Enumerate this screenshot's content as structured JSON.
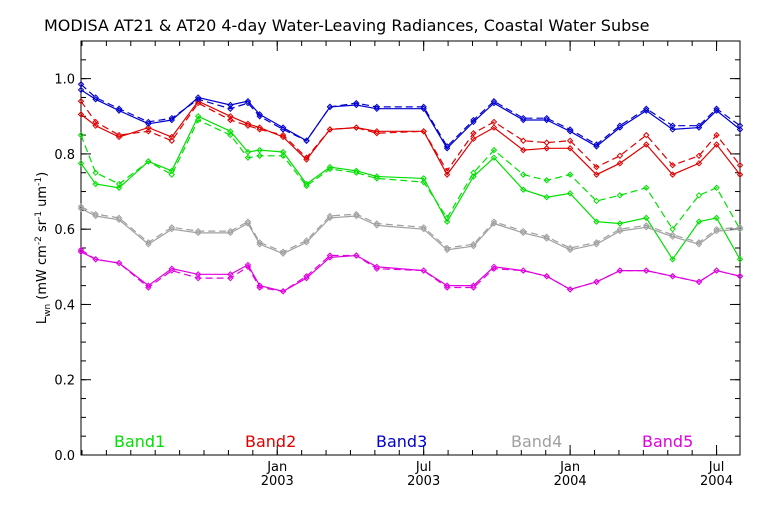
{
  "chart_data": {
    "type": "line",
    "title": "MODISA AT21 & AT20 4-day Water-Leaving Radiances, Coastal Water Subse",
    "ylabel_main": "L",
    "ylabel_sub": "wn",
    "ylabel_rest": " (mW cm",
    "ylabel_exp1": "-2",
    "ylabel_mid": " sr",
    "ylabel_exp2": "-1",
    "ylabel_mid2": " um",
    "ylabel_exp3": "-1",
    "ylabel_end": ")",
    "ylim": [
      0.0,
      1.1
    ],
    "xlim": [
      2002.33,
      2004.58
    ],
    "yticks": [
      "0.0",
      "0.2",
      "0.4",
      "0.6",
      "0.8",
      "1.0"
    ],
    "xticks": [
      {
        "x": 2003.0,
        "month": "Jan",
        "year": "2003"
      },
      {
        "x": 2003.5,
        "month": "Jul",
        "year": "2003"
      },
      {
        "x": 2004.0,
        "month": "Jan",
        "year": "2004"
      },
      {
        "x": 2004.5,
        "month": "Jul",
        "year": "2004"
      }
    ],
    "legend": [
      "Band1",
      "Band2",
      "Band3",
      "Band4",
      "Band5"
    ],
    "x": [
      2002.33,
      2002.38,
      2002.46,
      2002.56,
      2002.64,
      2002.73,
      2002.84,
      2002.9,
      2002.94,
      2003.02,
      2003.1,
      2003.18,
      2003.27,
      2003.34,
      2003.5,
      2003.58,
      2003.67,
      2003.74,
      2003.84,
      2003.92,
      2004.0,
      2004.09,
      2004.17,
      2004.26,
      2004.35,
      2004.44,
      2004.5,
      2004.58
    ],
    "series": [
      {
        "name": "Band1",
        "color": "#00e000",
        "style": "solid",
        "values": [
          0.775,
          0.72,
          0.71,
          0.78,
          0.755,
          0.9,
          0.86,
          0.805,
          0.81,
          0.805,
          0.72,
          0.765,
          0.755,
          0.74,
          0.735,
          0.62,
          0.74,
          0.79,
          0.705,
          0.685,
          0.695,
          0.62,
          0.615,
          0.63,
          0.52,
          0.62,
          0.63,
          0.52
        ]
      },
      {
        "name": "Band1",
        "color": "#00e000",
        "style": "dashed",
        "values": [
          0.85,
          0.75,
          0.72,
          0.78,
          0.745,
          0.89,
          0.85,
          0.79,
          0.795,
          0.795,
          0.715,
          0.76,
          0.75,
          0.735,
          0.725,
          0.63,
          0.75,
          0.81,
          0.745,
          0.73,
          0.745,
          0.675,
          0.69,
          0.71,
          0.6,
          0.69,
          0.71,
          0.6
        ]
      },
      {
        "name": "Band2",
        "color": "#e00000",
        "style": "solid",
        "values": [
          0.905,
          0.875,
          0.845,
          0.87,
          0.845,
          0.94,
          0.9,
          0.88,
          0.87,
          0.845,
          0.785,
          0.865,
          0.87,
          0.86,
          0.86,
          0.745,
          0.84,
          0.87,
          0.81,
          0.815,
          0.815,
          0.745,
          0.775,
          0.825,
          0.745,
          0.775,
          0.825,
          0.745
        ]
      },
      {
        "name": "Band2",
        "color": "#e00000",
        "style": "dashed",
        "values": [
          0.94,
          0.885,
          0.85,
          0.86,
          0.835,
          0.935,
          0.89,
          0.875,
          0.865,
          0.85,
          0.79,
          0.865,
          0.87,
          0.855,
          0.86,
          0.755,
          0.855,
          0.885,
          0.835,
          0.83,
          0.835,
          0.765,
          0.795,
          0.85,
          0.77,
          0.795,
          0.85,
          0.77
        ]
      },
      {
        "name": "Band3",
        "color": "#0000d0",
        "style": "solid",
        "values": [
          0.97,
          0.945,
          0.915,
          0.88,
          0.89,
          0.95,
          0.93,
          0.94,
          0.905,
          0.87,
          0.835,
          0.925,
          0.93,
          0.92,
          0.92,
          0.815,
          0.885,
          0.935,
          0.89,
          0.89,
          0.86,
          0.82,
          0.87,
          0.915,
          0.865,
          0.87,
          0.915,
          0.865
        ]
      },
      {
        "name": "Band3",
        "color": "#0000d0",
        "style": "dashed",
        "values": [
          0.985,
          0.95,
          0.92,
          0.885,
          0.895,
          0.945,
          0.92,
          0.935,
          0.9,
          0.865,
          0.835,
          0.925,
          0.935,
          0.925,
          0.925,
          0.82,
          0.89,
          0.94,
          0.895,
          0.895,
          0.865,
          0.825,
          0.875,
          0.92,
          0.875,
          0.875,
          0.92,
          0.875
        ]
      },
      {
        "name": "Band4",
        "color": "#a0a0a0",
        "style": "solid",
        "values": [
          0.655,
          0.635,
          0.625,
          0.56,
          0.6,
          0.59,
          0.59,
          0.615,
          0.56,
          0.535,
          0.565,
          0.63,
          0.635,
          0.61,
          0.6,
          0.545,
          0.555,
          0.615,
          0.59,
          0.575,
          0.545,
          0.56,
          0.595,
          0.605,
          0.58,
          0.56,
          0.595,
          0.6
        ]
      },
      {
        "name": "Band4",
        "color": "#a0a0a0",
        "style": "dashed",
        "values": [
          0.66,
          0.64,
          0.63,
          0.565,
          0.605,
          0.595,
          0.595,
          0.62,
          0.565,
          0.54,
          0.57,
          0.635,
          0.64,
          0.615,
          0.605,
          0.55,
          0.56,
          0.62,
          0.595,
          0.58,
          0.55,
          0.565,
          0.6,
          0.61,
          0.585,
          0.565,
          0.6,
          0.605
        ]
      },
      {
        "name": "Band5",
        "color": "#e000e0",
        "style": "solid",
        "values": [
          0.54,
          0.52,
          0.51,
          0.45,
          0.495,
          0.48,
          0.48,
          0.505,
          0.45,
          0.435,
          0.47,
          0.525,
          0.53,
          0.5,
          0.49,
          0.45,
          0.45,
          0.5,
          0.49,
          0.475,
          0.44,
          0.46,
          0.49,
          0.49,
          0.475,
          0.46,
          0.49,
          0.475
        ]
      },
      {
        "name": "Band5",
        "color": "#e000e0",
        "style": "dashed",
        "values": [
          0.545,
          0.52,
          0.51,
          0.445,
          0.49,
          0.47,
          0.47,
          0.5,
          0.445,
          0.435,
          0.475,
          0.53,
          0.53,
          0.495,
          0.49,
          0.445,
          0.445,
          0.495,
          0.49,
          0.475,
          0.44,
          0.46,
          0.49,
          0.49,
          0.475,
          0.46,
          0.49,
          0.475
        ]
      }
    ]
  }
}
